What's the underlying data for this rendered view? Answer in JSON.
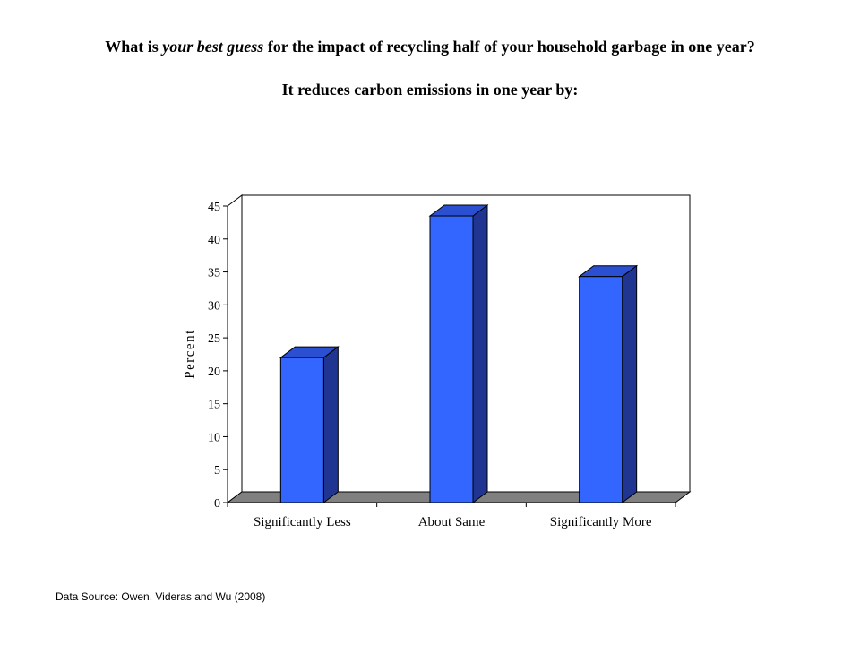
{
  "title": {
    "part1": "What is ",
    "emphasis": "your best guess",
    "part2": " for the impact of recycling half of your household garbage in one year?",
    "subtitle": "It reduces carbon emissions in one year by:"
  },
  "source": "Data Source: Owen, Videras and Wu (2008)",
  "chart_data": {
    "type": "bar",
    "categories": [
      "Significantly Less",
      "About Same",
      "Significantly More"
    ],
    "values": [
      22,
      43.5,
      34.3
    ],
    "ylabel": "Percent",
    "xlabel": "",
    "ylim": [
      0,
      45
    ],
    "yticks": [
      0,
      5,
      10,
      15,
      20,
      25,
      30,
      35,
      40,
      45
    ],
    "grid": false,
    "legend": "none",
    "style": "3d",
    "colors": {
      "bar_front": "#3366ff",
      "bar_side": "#1f3591",
      "bar_top": "#2a4fd0",
      "floor": "#808080"
    }
  }
}
